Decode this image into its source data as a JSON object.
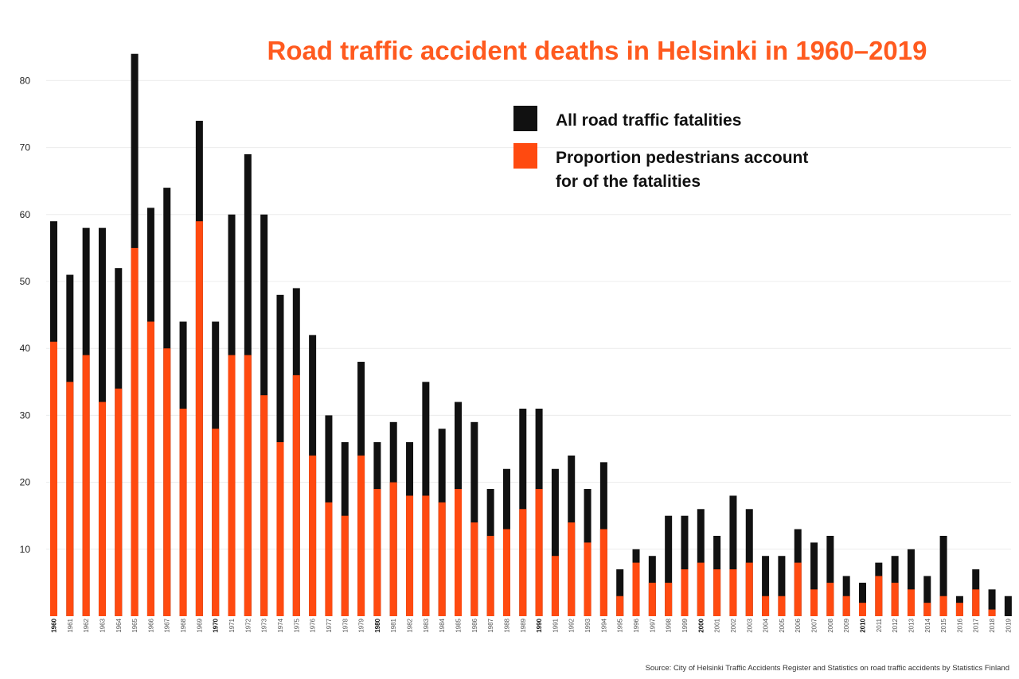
{
  "chart_data": {
    "type": "bar",
    "title": "Road traffic accident deaths in Helsinki in 1960–2019",
    "source": "Source: City of Helsinki Traffic Accidents Register and Statistics on road traffic accidents by Statistics Finland",
    "legend": {
      "placement": "top-right",
      "items": [
        {
          "label_lines": [
            "All road traffic fatalities"
          ],
          "color": "#111111"
        },
        {
          "label_lines": [
            "Proportion pedestrians account",
            "for of the fatalities"
          ],
          "color": "#ff4a10"
        }
      ]
    },
    "grid": true,
    "ylim": [
      0,
      85
    ],
    "yticks": [
      10,
      20,
      30,
      40,
      50,
      60,
      70,
      80
    ],
    "categories": [
      "1960",
      "1961",
      "1962",
      "1963",
      "1964",
      "1965",
      "1966",
      "1967",
      "1968",
      "1969",
      "1970",
      "1971",
      "1972",
      "1973",
      "1974",
      "1975",
      "1976",
      "1977",
      "1978",
      "1979",
      "1980",
      "1981",
      "1982",
      "1983",
      "1984",
      "1985",
      "1986",
      "1987",
      "1988",
      "1989",
      "1990",
      "1991",
      "1992",
      "1993",
      "1994",
      "1995",
      "1996",
      "1997",
      "1998",
      "1999",
      "2000",
      "2001",
      "2002",
      "2003",
      "2004",
      "2005",
      "2006",
      "2007",
      "2008",
      "2009",
      "2010",
      "2011",
      "2012",
      "2013",
      "2014",
      "2015",
      "2016",
      "2017",
      "2018",
      "2019"
    ],
    "series": [
      {
        "name": "All road traffic fatalities",
        "color": "#111111",
        "values": [
          59,
          51,
          58,
          58,
          52,
          84,
          61,
          64,
          44,
          74,
          44,
          60,
          69,
          60,
          48,
          49,
          42,
          30,
          26,
          38,
          26,
          29,
          26,
          35,
          28,
          32,
          29,
          19,
          22,
          31,
          31,
          22,
          24,
          19,
          23,
          7,
          10,
          9,
          15,
          15,
          16,
          12,
          18,
          16,
          9,
          9,
          13,
          11,
          12,
          6,
          5,
          8,
          9,
          10,
          6,
          12,
          3,
          7,
          4,
          3
        ]
      },
      {
        "name": "Proportion pedestrians account for of the fatalities",
        "color": "#ff4a10",
        "values": [
          41,
          35,
          39,
          32,
          34,
          55,
          44,
          40,
          31,
          59,
          28,
          39,
          39,
          33,
          26,
          36,
          24,
          17,
          15,
          24,
          19,
          20,
          18,
          18,
          17,
          19,
          14,
          12,
          13,
          16,
          19,
          9,
          14,
          11,
          13,
          3,
          8,
          5,
          5,
          7,
          8,
          7,
          7,
          8,
          3,
          3,
          8,
          4,
          5,
          3,
          2,
          6,
          5,
          4,
          2,
          3,
          2,
          4,
          1,
          0
        ]
      }
    ]
  }
}
